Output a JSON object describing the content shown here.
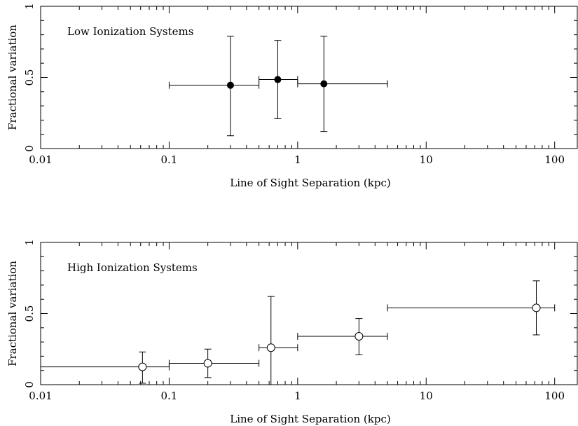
{
  "chart_data": [
    {
      "type": "scatter",
      "title": "",
      "annotation": "Low Ionization Systems",
      "xlabel": "Line of Sight Separation (kpc)",
      "ylabel": "Fractional variation",
      "xscale": "log",
      "xlim": [
        0.01,
        150
      ],
      "ylim": [
        0,
        1
      ],
      "xticks": [
        0.01,
        0.1,
        1,
        10,
        100
      ],
      "xtick_labels": [
        "0.01",
        "0.1",
        "1",
        "10",
        "100"
      ],
      "yticks": [
        0,
        0.5,
        1
      ],
      "ytick_labels": [
        "0",
        "0.5",
        "1"
      ],
      "marker": "filled-circle",
      "grid": false,
      "points": [
        {
          "x": 0.3,
          "y": 0.445,
          "xmin": 0.1,
          "xmax": 0.5,
          "ymin": 0.09,
          "ymax": 0.79
        },
        {
          "x": 0.7,
          "y": 0.485,
          "xmin": 0.5,
          "xmax": 1.0,
          "ymin": 0.21,
          "ymax": 0.76
        },
        {
          "x": 1.6,
          "y": 0.455,
          "xmin": 1.0,
          "xmax": 5.0,
          "ymin": 0.12,
          "ymax": 0.79
        }
      ]
    },
    {
      "type": "scatter",
      "title": "",
      "annotation": "High Ionization Systems",
      "xlabel": "Line of Sight Separation (kpc)",
      "ylabel": "Fractional variation",
      "xscale": "log",
      "xlim": [
        0.01,
        150
      ],
      "ylim": [
        0,
        1
      ],
      "xticks": [
        0.01,
        0.1,
        1,
        10,
        100
      ],
      "xtick_labels": [
        "0.01",
        "0.1",
        "1",
        "10",
        "100"
      ],
      "yticks": [
        0,
        0.5,
        1
      ],
      "ytick_labels": [
        "0",
        "0.5",
        "1"
      ],
      "marker": "open-circle",
      "grid": false,
      "points": [
        {
          "x": 0.062,
          "y": 0.125,
          "xmin": 0.01,
          "xmax": 0.1,
          "ymin": 0.01,
          "ymax": 0.23
        },
        {
          "x": 0.2,
          "y": 0.15,
          "xmin": 0.1,
          "xmax": 0.5,
          "ymin": 0.05,
          "ymax": 0.25
        },
        {
          "x": 0.62,
          "y": 0.26,
          "xmin": 0.5,
          "xmax": 1.0,
          "ymin": 0.0,
          "ymax": 0.62
        },
        {
          "x": 3.0,
          "y": 0.34,
          "xmin": 1.0,
          "xmax": 5.0,
          "ymin": 0.21,
          "ymax": 0.465
        },
        {
          "x": 72,
          "y": 0.54,
          "xmin": 5.0,
          "xmax": 100,
          "ymin": 0.35,
          "ymax": 0.73
        }
      ]
    }
  ]
}
